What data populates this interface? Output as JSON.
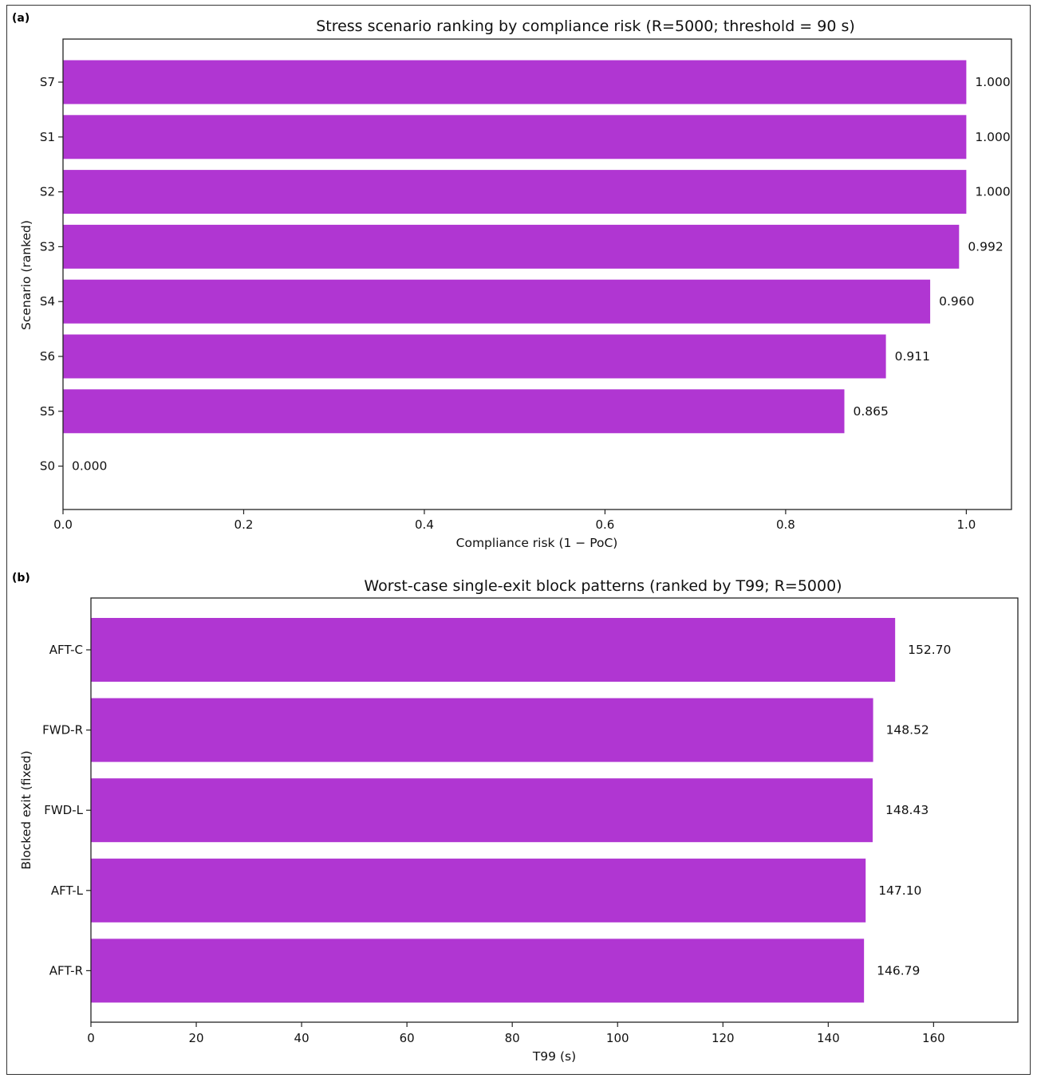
{
  "chart_data": [
    {
      "panel": "(a)",
      "type": "bar",
      "orientation": "horizontal",
      "title": "Stress scenario ranking by compliance risk (R=5000; threshold = 90 s)",
      "xlabel": "Compliance risk (1 − PoC)",
      "ylabel": "Scenario (ranked)",
      "categories": [
        "S7",
        "S1",
        "S2",
        "S3",
        "S4",
        "S6",
        "S5",
        "S0"
      ],
      "values": [
        1.0,
        1.0,
        1.0,
        0.992,
        0.96,
        0.911,
        0.865,
        0.0
      ],
      "value_labels": [
        "1.000",
        "1.000",
        "1.000",
        "0.992",
        "0.960",
        "0.911",
        "0.865",
        "0.000"
      ],
      "xlim": [
        0,
        1.05
      ],
      "xticks": [
        0.0,
        0.2,
        0.4,
        0.6,
        0.8,
        1.0
      ],
      "xtick_labels": [
        "0.0",
        "0.2",
        "0.4",
        "0.6",
        "0.8",
        "1.0"
      ],
      "bar_color": "#b036d2",
      "grid": false
    },
    {
      "panel": "(b)",
      "type": "bar",
      "orientation": "horizontal",
      "title": "Worst-case single-exit block patterns (ranked by T99; R=5000)",
      "xlabel": "T99 (s)",
      "ylabel": "Blocked exit (fixed)",
      "categories": [
        "AFT-C",
        "FWD-R",
        "FWD-L",
        "AFT-L",
        "AFT-R"
      ],
      "values": [
        152.7,
        148.52,
        148.43,
        147.1,
        146.79
      ],
      "value_labels": [
        "152.70",
        "148.52",
        "148.43",
        "147.10",
        "146.79"
      ],
      "xlim": [
        0,
        176
      ],
      "xticks": [
        0,
        20,
        40,
        60,
        80,
        100,
        120,
        140,
        160
      ],
      "xtick_labels": [
        "0",
        "20",
        "40",
        "60",
        "80",
        "100",
        "120",
        "140",
        "160"
      ],
      "bar_color": "#b036d2",
      "grid": false
    }
  ]
}
